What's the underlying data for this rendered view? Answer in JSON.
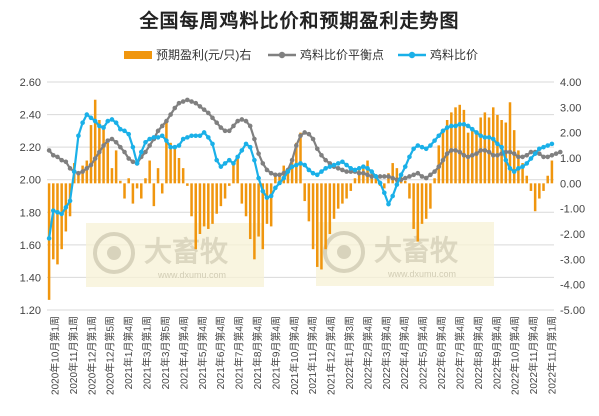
{
  "chart_data": {
    "type": "combo",
    "title": "全国每周鸡料比价和预期盈利走势图",
    "legend_position": "top",
    "watermark": {
      "brand": "大畜牧",
      "url": "www.dxumu.com"
    },
    "colors": {
      "profit_bar": "#f0960e",
      "breakeven_line": "#808080",
      "ratio_line": "#1ab0e8"
    },
    "left_axis": {
      "min": 1.2,
      "max": 2.6,
      "step": 0.2,
      "decimals": 2
    },
    "right_axis": {
      "min": -5.0,
      "max": 4.0,
      "step": 1.0,
      "decimals": 2
    },
    "x_labels": [
      "2020年10月第1周",
      "2020年11月第1周",
      "2020年12月第1周",
      "2020年12月第5周",
      "2021年1月第4周",
      "2021年3月第1周",
      "2021年3月第5周",
      "2021年4月第4周",
      "2021年5月第4周",
      "2021年6月第4周",
      "2021年7月第4周",
      "2021年8月第4周",
      "2021年9月第4周",
      "2021年10月第4周",
      "2021年11月第4周",
      "2021年12月第4周",
      "2022年1月第3周",
      "2022年2月第4周",
      "2022年3月第4周",
      "2022年4月第4周",
      "2022年5月第4周",
      "2022年6月第4周",
      "2022年7月第4周",
      "2022年8月第4周",
      "2022年9月第4周",
      "2022年10月第4周",
      "2022年11月第4周",
      "2022年11月第1周"
    ],
    "series": [
      {
        "name": "预期盈利(元/只)右",
        "type": "bar",
        "axis": "right",
        "values": [
          -4.6,
          -3.0,
          -3.2,
          -2.6,
          -1.9,
          -1.3,
          0.8,
          0.4,
          0.7,
          0.9,
          2.3,
          3.3,
          2.5,
          2.3,
          1.6,
          0.6,
          1.3,
          0.1,
          -0.6,
          0.2,
          -0.8,
          -0.2,
          -0.6,
          0.2,
          0.9,
          -0.9,
          0.6,
          -0.4,
          2.5,
          1.6,
          1.4,
          1.0,
          0.6,
          -0.1,
          -1.3,
          -2.6,
          -2.0,
          -1.7,
          -1.8,
          -1.6,
          -1.2,
          -0.9,
          -0.6,
          -0.1,
          0.8,
          1.1,
          -0.8,
          -1.3,
          -2.2,
          -3.0,
          -2.1,
          -2.6,
          -1.6,
          -1.7,
          0.4,
          0.4,
          0.7,
          0.6,
          1.0,
          1.6,
          2.0,
          -0.7,
          -1.5,
          -2.6,
          -3.3,
          -3.4,
          -2.6,
          -2.0,
          -1.4,
          -1.0,
          -0.8,
          -0.6,
          -0.3,
          0.2,
          0.6,
          0.7,
          0.9,
          0.4,
          0.2,
          -0.1,
          -0.2,
          0.4,
          0.8,
          0.6,
          0.3,
          0.1,
          -0.6,
          -1.8,
          -2.3,
          -1.6,
          -1.4,
          -1.0,
          0.2,
          1.5,
          2.0,
          2.5,
          2.8,
          3.0,
          3.1,
          2.9,
          2.0,
          2.2,
          2.0,
          2.6,
          2.8,
          2.6,
          3.0,
          2.7,
          2.5,
          2.4,
          3.2,
          2.1,
          1.3,
          0.8,
          0.3,
          -0.3,
          -1.1,
          -0.6,
          -0.3,
          0.3,
          0.9
        ]
      },
      {
        "name": "鸡料比价平衡点",
        "type": "line",
        "axis": "left",
        "values": [
          2.18,
          2.15,
          2.14,
          2.12,
          2.11,
          2.07,
          2.05,
          2.04,
          2.05,
          2.07,
          2.09,
          2.13,
          2.17,
          2.21,
          2.24,
          2.25,
          2.23,
          2.2,
          2.17,
          2.13,
          2.11,
          2.1,
          2.14,
          2.17,
          2.21,
          2.25,
          2.3,
          2.33,
          2.36,
          2.4,
          2.44,
          2.47,
          2.48,
          2.49,
          2.48,
          2.47,
          2.45,
          2.43,
          2.41,
          2.38,
          2.35,
          2.32,
          2.3,
          2.3,
          2.33,
          2.36,
          2.37,
          2.36,
          2.33,
          2.25,
          2.16,
          2.1,
          2.06,
          2.04,
          2.03,
          2.03,
          2.04,
          2.06,
          2.12,
          2.21,
          2.27,
          2.29,
          2.28,
          2.25,
          2.19,
          2.15,
          2.12,
          2.1,
          2.08,
          2.07,
          2.06,
          2.05,
          2.05,
          2.05,
          2.04,
          2.04,
          2.03,
          2.02,
          2.02,
          2.02,
          2.02,
          2.02,
          2.01,
          2.0,
          2.0,
          2.01,
          2.02,
          2.03,
          2.04,
          2.02,
          2.01,
          2.03,
          2.05,
          2.08,
          2.12,
          2.16,
          2.18,
          2.18,
          2.17,
          2.15,
          2.14,
          2.15,
          2.16,
          2.18,
          2.18,
          2.17,
          2.15,
          2.15,
          2.16,
          2.17,
          2.17,
          2.16,
          2.14,
          2.14,
          2.15,
          2.17,
          2.17,
          2.16,
          2.14,
          2.14,
          2.15,
          2.16,
          2.17
        ]
      },
      {
        "name": "鸡料比价",
        "type": "line",
        "axis": "left",
        "values": [
          1.64,
          1.81,
          1.8,
          1.79,
          1.83,
          1.87,
          2.05,
          2.27,
          2.35,
          2.4,
          2.38,
          2.36,
          2.33,
          2.32,
          2.36,
          2.37,
          2.35,
          2.31,
          2.3,
          2.28,
          2.2,
          2.1,
          2.17,
          2.23,
          2.25,
          2.26,
          2.26,
          2.27,
          2.24,
          2.2,
          2.2,
          2.21,
          2.25,
          2.26,
          2.27,
          2.27,
          2.27,
          2.29,
          2.26,
          2.22,
          2.12,
          2.08,
          2.1,
          2.12,
          2.1,
          2.14,
          2.18,
          2.22,
          2.2,
          2.12,
          2.01,
          1.93,
          1.89,
          1.9,
          1.95,
          1.98,
          2.01,
          2.05,
          2.08,
          2.09,
          2.1,
          2.09,
          2.06,
          2.04,
          2.03,
          2.05,
          2.07,
          2.08,
          2.09,
          2.1,
          2.11,
          2.09,
          2.07,
          2.06,
          2.07,
          2.08,
          2.07,
          2.05,
          2.02,
          1.98,
          1.92,
          1.85,
          1.9,
          1.97,
          2.03,
          2.08,
          2.14,
          2.19,
          2.21,
          2.2,
          2.19,
          2.21,
          2.24,
          2.27,
          2.3,
          2.32,
          2.33,
          2.33,
          2.34,
          2.34,
          2.33,
          2.31,
          2.29,
          2.27,
          2.26,
          2.26,
          2.25,
          2.22,
          2.2,
          2.12,
          2.07,
          2.05,
          2.07,
          2.08,
          2.1,
          2.13,
          2.16,
          2.19,
          2.2,
          2.21,
          2.22
        ]
      }
    ]
  }
}
